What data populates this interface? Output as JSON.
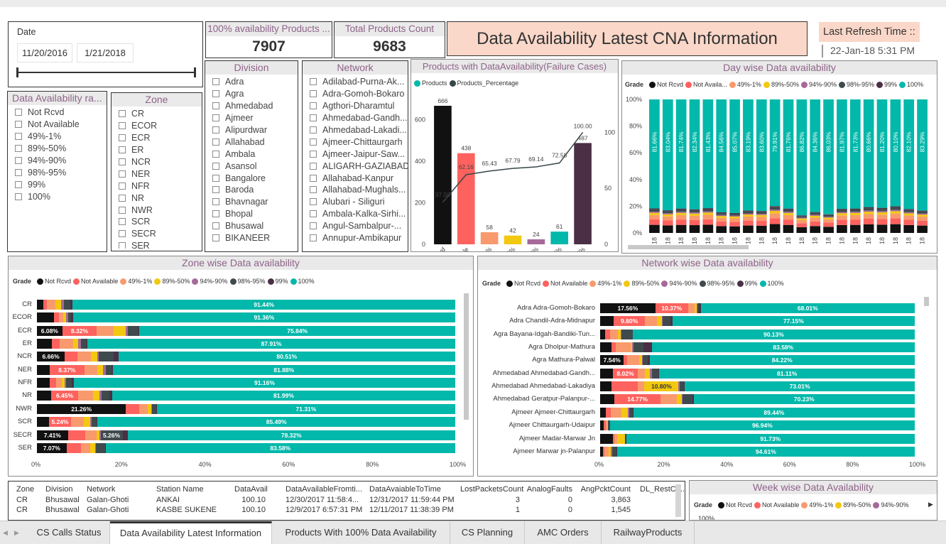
{
  "date_slicer": {
    "title": "Date",
    "start": "11/20/2016",
    "end": "1/21/2018"
  },
  "card1": {
    "title": "100% availability Products ...",
    "value": "7907"
  },
  "card2": {
    "title": "Total Products Count",
    "value": "9683"
  },
  "main_title": "Data Availability Latest CNA Information",
  "refresh": {
    "label": "Last Refresh Time ::",
    "value": "22-Jan-18 5:31 PM"
  },
  "range_slicer": {
    "title": "Data Availability ra...",
    "items": [
      "Not Rcvd",
      "Not Available",
      "49%-1%",
      "89%-50%",
      "94%-90%",
      "98%-95%",
      "99%",
      "100%"
    ]
  },
  "zone_slicer": {
    "title": "Zone",
    "items": [
      "CR",
      "ECOR",
      "ECR",
      "ER",
      "NCR",
      "NER",
      "NFR",
      "NR",
      "NWR",
      "SCR",
      "SECR",
      "SER"
    ]
  },
  "division_slicer": {
    "title": "Division",
    "items": [
      "Adra",
      "Agra",
      "Ahmedabad",
      "Ajmeer",
      "Alipurdwar",
      "Allahabad",
      "Ambala",
      "Asansol",
      "Bangalore",
      "Baroda",
      "Bhavnagar",
      "Bhopal",
      "Bhusawal",
      "BIKANEER"
    ]
  },
  "network_slicer": {
    "title": "Network",
    "items": [
      "Adilabad-Purna-Ak...",
      "Adra-Gomoh-Bokaro",
      "Agthori-Dharamtul",
      "Ahmedabad-Gandh...",
      "Ahmedabad-Lakadi...",
      "Ajmeer-Chittaurgarh",
      "Ajmeer-Jaipur-Saw...",
      "ALIGARH-GAZIABAD",
      "Allahabad-Kanpur",
      "Allahabad-Mughals...",
      "Alubari - Siliguri",
      "Ambala-Kalka-Sirhi...",
      "Angul-Sambalpur-...",
      "Annupur-Ambikapur"
    ]
  },
  "colors": {
    "not_rcvd": "#111111",
    "not_available": "#fd625e",
    "c49_1": "#f89a6d",
    "c89_50": "#f2c811",
    "c94_90": "#a66999",
    "c98_95": "#3f4a4d",
    "c99": "#4b2f45",
    "c100": "#01b8aa",
    "pct_line": "#374649"
  },
  "legend_labels": {
    "grade": "Grade",
    "items": [
      "Not Rcvd",
      "Not Available",
      "49%-1%",
      "89%-50%",
      "94%-90%",
      "98%-95%",
      "99%",
      "100%"
    ],
    "day_items": [
      "Not Rcvd",
      "Not Availa...",
      "49%-1%",
      "89%-50%",
      "94%-90%",
      "98%-95%",
      "99%",
      "100%"
    ],
    "week_items": [
      "Not Rcvd",
      "Not Available",
      "49%-1%",
      "89%-50%",
      "94%-90%"
    ]
  },
  "failure_chart": {
    "title": "Products with DataAvailability(Failure Cases)",
    "legend": [
      "Products",
      "Products_Percentage"
    ],
    "left_ticks": [
      "0",
      "200",
      "400",
      "600"
    ],
    "right_ticks": [
      "0",
      "50",
      "100"
    ]
  },
  "day_chart": {
    "title": "Day wise Data availability",
    "y_ticks": [
      "0%",
      "20%",
      "40%",
      "60%",
      "80%",
      "100%"
    ]
  },
  "zone_chart": {
    "title": "Zone wise Data availability",
    "x_ticks": [
      "0%",
      "20%",
      "40%",
      "60%",
      "80%",
      "100%"
    ]
  },
  "network_chart": {
    "title": "Network wise Data availability",
    "x_ticks": [
      "0%",
      "20%",
      "40%",
      "60%",
      "80%",
      "100%"
    ]
  },
  "week_chart": {
    "title": "Week wise Data Availability",
    "y_first": "100%"
  },
  "chart_data": [
    {
      "type": "bar",
      "title": "Products with DataAvailability(Failure Cases)",
      "categories": [
        "Not Rcvd",
        "Not Available",
        "49%-1%",
        "89%-50%",
        "94%-90%",
        "98%-95%",
        "99%"
      ],
      "series": [
        {
          "name": "Products",
          "values": [
            666,
            438,
            58,
            42,
            24,
            61,
            487
          ]
        },
        {
          "name": "Products_Percentage",
          "values": [
            37.5,
            62.16,
            65.43,
            67.79,
            69.14,
            72.58,
            100.0
          ]
        }
      ],
      "ylim": [
        0,
        700
      ],
      "y2lim": [
        0,
        130
      ]
    },
    {
      "type": "bar",
      "stacked": true,
      "title": "Day wise Data availability",
      "categories": [
        "21 Jan 18",
        "20 Jan 18",
        "19 Jan 18",
        "18 Jan 18",
        "17 Jan 18",
        "16 Jan 18",
        "15 Jan 18",
        "14 Jan 18",
        "13 Jan 18",
        "12 Jan 18",
        "11 Jan 18",
        "10 Jan 18",
        "09 Jan 18",
        "08 Jan 18",
        "07 Jan 18",
        "06 Jan 18",
        "05 Jan 18",
        "04 Jan 18",
        "03 Jan 18",
        "02 Jan 18",
        "01 Jan 18"
      ],
      "values_100": [
        81.66,
        83.04,
        81.74,
        82.34,
        81.43,
        84.56,
        85.07,
        83.19,
        83.6,
        79.91,
        81.76,
        86.82,
        84.36,
        86.03,
        81.97,
        81.73,
        80.66,
        81.2,
        80.1,
        82.1,
        83.29
      ],
      "ylim": [
        0,
        100
      ]
    },
    {
      "type": "bar",
      "stacked": true,
      "orientation": "horizontal",
      "title": "Zone wise Data availability",
      "categories": [
        "CR",
        "ECOR",
        "ECR",
        "ER",
        "NCR",
        "NER",
        "NFR",
        "NR",
        "NWR",
        "SCR",
        "SECR",
        "SER"
      ],
      "rows": [
        {
          "segs": [
            1.5,
            0.8,
            2.1,
            1.3,
            0.8,
            1.5,
            0.56,
            91.44
          ],
          "labels": {
            "7": "91.44%"
          }
        },
        {
          "segs": [
            4.0,
            1.2,
            1.1,
            0.7,
            0.4,
            0.8,
            0.44,
            91.36
          ],
          "labels": {
            "7": "91.36%"
          }
        },
        {
          "segs": [
            6.08,
            8.32,
            4.0,
            3.0,
            0.5,
            2.5,
            0.26,
            75.84
          ],
          "labels": {
            "0": "6.08%",
            "1": "8.32%",
            "7": "75.84%"
          }
        },
        {
          "segs": [
            3.5,
            2.0,
            3.2,
            1.2,
            0.6,
            1.4,
            0.19,
            87.91
          ],
          "labels": {
            "7": "87.91%"
          }
        },
        {
          "segs": [
            6.66,
            3.0,
            3.2,
            1.5,
            0.4,
            3.5,
            1.23,
            80.51
          ],
          "labels": {
            "0": "6.66%",
            "7": "80.51%"
          }
        },
        {
          "segs": [
            3.0,
            8.37,
            3.0,
            1.5,
            0.6,
            1.3,
            0.35,
            81.88
          ],
          "labels": {
            "1": "8.37%",
            "7": "81.88%"
          }
        },
        {
          "segs": [
            3.0,
            1.6,
            1.4,
            0.7,
            0.3,
            1.3,
            0.54,
            91.16
          ],
          "labels": {
            "7": "91.16%"
          }
        },
        {
          "segs": [
            3.4,
            6.45,
            3.5,
            1.6,
            0.5,
            1.9,
            0.65,
            81.99
          ],
          "labels": {
            "1": "6.45%",
            "7": "81.99%"
          }
        },
        {
          "segs": [
            21.26,
            3.2,
            2.0,
            0.8,
            0.3,
            0.9,
            0.23,
            71.31
          ],
          "labels": {
            "0": "21.26%",
            "7": "71.31%"
          }
        },
        {
          "segs": [
            2.9,
            5.24,
            3.1,
            1.5,
            0.3,
            1.2,
            0.27,
            85.49
          ],
          "labels": {
            "1": "5.24%",
            "7": "85.49%"
          }
        },
        {
          "segs": [
            7.41,
            4.1,
            2.7,
            0.8,
            0.2,
            5.26,
            1.21,
            78.32
          ],
          "labels": {
            "0": "7.41%",
            "5": "5.26%",
            "7": "78.32%"
          }
        },
        {
          "segs": [
            7.07,
            3.4,
            2.2,
            1.2,
            0.3,
            2.1,
            0.15,
            83.58
          ],
          "labels": {
            "0": "7.07%",
            "7": "83.58%"
          }
        }
      ]
    },
    {
      "type": "bar",
      "stacked": true,
      "orientation": "horizontal",
      "title": "Network wise Data availability",
      "categories": [
        "Adra Adra-Gomoh-Bokaro",
        "Adra Chandil-Adra-Midnapur",
        "Agra Bayana-Idgah-Bandiki-Tun...",
        "Agra Dholpur-Mathura",
        "Agra Mathura-Palwal",
        "Ahmedabad Ahmedabad-Gandh...",
        "Ahmedabad Ahmedabad-Lakadiya",
        "Ahmedabad Geratpur-Palanpur-...",
        "Ajmeer Ajmeer-Chittaurgarh",
        "Ajmeer Chittaurgarh-Udaipur",
        "Ajmeer Madar-Marwar Jn",
        "Ajmeer Marwar jn-Palanpur"
      ],
      "rows": [
        {
          "segs": [
            17.56,
            10.37,
            2.0,
            0.8,
            0.3,
            0.4,
            0.55,
            68.01
          ],
          "labels": {
            "0": "17.56%",
            "1": "10.37%",
            "7": "68.01%"
          }
        },
        {
          "segs": [
            4.4,
            9.8,
            4.0,
            1.4,
            0.4,
            2.4,
            0.65,
            77.15
          ],
          "labels": {
            "1": "9.80%",
            "7": "77.15%"
          }
        },
        {
          "segs": [
            1.7,
            1.5,
            2.5,
            0.8,
            0.4,
            3.5,
            0.03,
            90.13
          ],
          "labels": {
            "7": "90.13%"
          }
        },
        {
          "segs": [
            3.5,
            1.5,
            4.7,
            0.5,
            0.4,
            3.2,
            2.62,
            83.58
          ],
          "labels": {
            "7": "83.58%"
          }
        },
        {
          "segs": [
            7.54,
            1.0,
            3.8,
            1.0,
            0.2,
            1.6,
            0.56,
            84.22
          ],
          "labels": {
            "0": "7.54%",
            "7": "84.22%"
          }
        },
        {
          "segs": [
            4.0,
            8.02,
            2.1,
            1.7,
            0.6,
            2.0,
            0.42,
            81.11
          ],
          "labels": {
            "1": "8.02%",
            "7": "81.11%"
          }
        },
        {
          "segs": [
            3.5,
            8.5,
            2.1,
            10.8,
            0.4,
            1.4,
            0.23,
            73.01
          ],
          "labels": {
            "3": "10.80%",
            "7": "73.01%"
          }
        },
        {
          "segs": [
            4.5,
            14.77,
            5.2,
            1.5,
            0.3,
            3.0,
            0.47,
            70.23
          ],
          "labels": {
            "1": "14.77%",
            "7": "70.23%"
          }
        },
        {
          "segs": [
            1.8,
            1.5,
            3.4,
            2.1,
            0.4,
            1.3,
            0.06,
            89.44
          ],
          "labels": {
            "7": "89.44%"
          }
        },
        {
          "segs": [
            1.2,
            0.6,
            0.4,
            0.3,
            0.1,
            0.5,
            0.06,
            96.94
          ],
          "labels": {
            "7": "96.94%"
          }
        },
        {
          "segs": [
            4.1,
            0.4,
            1.0,
            2.3,
            0.2,
            0.2,
            0.06,
            91.73
          ],
          "labels": {
            "7": "91.73%"
          }
        },
        {
          "segs": [
            0.8,
            0.5,
            1.4,
            0.8,
            0.4,
            1.3,
            0.19,
            94.61
          ],
          "labels": {
            "7": "94.61%"
          }
        }
      ]
    }
  ],
  "table": {
    "headers": [
      "Zone",
      "Division",
      "Network",
      "Station Name",
      "DataAvail",
      "DataAvailableFromti...",
      "DataAvaiableToTime",
      "LostPacketsCount",
      "AnalogFaults",
      "AngPcktCount",
      "DL_RestCo..."
    ],
    "rows": [
      [
        "CR",
        "Bhusawal",
        "Galan-Ghoti",
        "ANKAI",
        "100.10",
        "12/30/2017 11:58:4...",
        "12/31/2017 11:59:44 PM",
        "3",
        "0",
        "3,863",
        ""
      ],
      [
        "CR",
        "Bhusawal",
        "Galan-Ghoti",
        "KASBE SUKENE",
        "100.10",
        "12/9/2017 6:57:31 PM",
        "12/11/2017 11:38:39 PM",
        "1",
        "0",
        "1,545",
        ""
      ]
    ]
  },
  "tabs": [
    "CS Calls Status",
    "Data Availability Latest Information",
    "Products With 100% Data Availability",
    "CS Planning",
    "AMC Orders",
    "RailwayProducts"
  ]
}
